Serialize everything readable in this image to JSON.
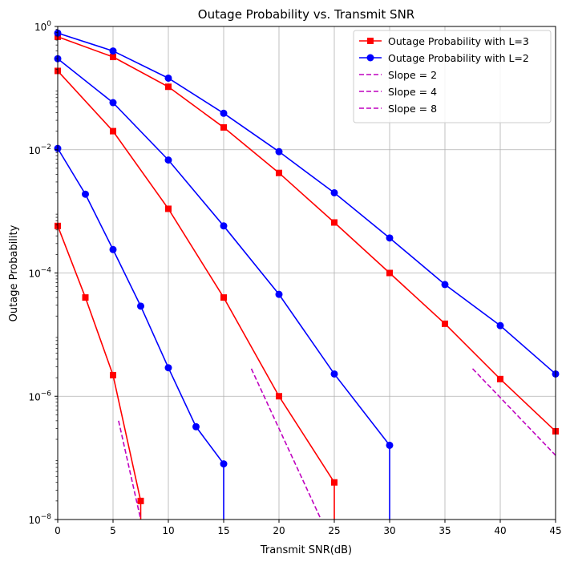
{
  "chart_data": {
    "type": "line",
    "title": "Outage Probability vs. Transmit SNR",
    "xlabel": "Transmit SNR(dB)",
    "ylabel": "Outage Probability",
    "x_scale": "linear",
    "y_scale": "log",
    "xlim": [
      0,
      45
    ],
    "ylim": [
      1e-08,
      1
    ],
    "x_ticks": [
      {
        "value": 0,
        "label": "0"
      },
      {
        "value": 5,
        "label": "5"
      },
      {
        "value": 10,
        "label": "10"
      },
      {
        "value": 15,
        "label": "15"
      },
      {
        "value": 20,
        "label": "20"
      },
      {
        "value": 25,
        "label": "25"
      },
      {
        "value": 30,
        "label": "30"
      },
      {
        "value": 35,
        "label": "35"
      },
      {
        "value": 40,
        "label": "40"
      },
      {
        "value": 45,
        "label": "45"
      }
    ],
    "y_ticks": [
      {
        "value": 1e-08,
        "base": "10",
        "exp": "−8"
      },
      {
        "value": 1e-06,
        "base": "10",
        "exp": "−6"
      },
      {
        "value": 0.0001,
        "base": "10",
        "exp": "−4"
      },
      {
        "value": 0.01,
        "base": "10",
        "exp": "−2"
      },
      {
        "value": 1,
        "base": "10",
        "exp": "0"
      }
    ],
    "grid": true,
    "legend_position": "top-right",
    "legend": [
      {
        "label": "Outage Probability with L=3",
        "color": "#ff0000",
        "marker": "square",
        "dashed": false
      },
      {
        "label": "Outage Probability with L=2",
        "color": "#0000ff",
        "marker": "circle",
        "dashed": false
      },
      {
        "label": "Slope = 2",
        "color": "#bf00bf",
        "marker": "none",
        "dashed": true
      },
      {
        "label": "Slope = 4",
        "color": "#bf00bf",
        "marker": "none",
        "dashed": true
      },
      {
        "label": "Slope = 8",
        "color": "#bf00bf",
        "marker": "none",
        "dashed": true
      }
    ],
    "series": [
      {
        "group": "L3",
        "color": "#ff0000",
        "marker": "square",
        "dashed": false,
        "x": [
          0,
          5,
          10,
          15,
          20,
          25,
          30,
          35,
          40,
          45
        ],
        "y": [
          0.68,
          0.32,
          0.105,
          0.023,
          0.0042,
          0.00066,
          0.0001,
          1.5e-05,
          1.9e-06,
          2.7e-07
        ]
      },
      {
        "group": "L3",
        "color": "#ff0000",
        "marker": "square",
        "dashed": false,
        "x": [
          0,
          5,
          10,
          15,
          20,
          25,
          25
        ],
        "y": [
          0.19,
          0.02,
          0.0011,
          4e-05,
          1e-06,
          4e-08,
          1e-08
        ]
      },
      {
        "group": "L3",
        "color": "#ff0000",
        "marker": "square",
        "dashed": false,
        "x": [
          0,
          2.5,
          5,
          7.5,
          7.5
        ],
        "y": [
          0.00058,
          4e-05,
          2.2e-06,
          2e-08,
          1e-08
        ]
      },
      {
        "group": "L2",
        "color": "#0000ff",
        "marker": "circle",
        "dashed": false,
        "x": [
          0,
          5,
          10,
          15,
          20,
          25,
          30,
          35,
          40,
          45
        ],
        "y": [
          0.78,
          0.4,
          0.145,
          0.039,
          0.0093,
          0.002,
          0.00037,
          6.5e-05,
          1.4e-05,
          2.3e-06
        ]
      },
      {
        "group": "L2",
        "color": "#0000ff",
        "marker": "circle",
        "dashed": false,
        "x": [
          0,
          5,
          10,
          15,
          20,
          25,
          30,
          30
        ],
        "y": [
          0.3,
          0.058,
          0.0068,
          0.00058,
          4.5e-05,
          2.3e-06,
          1.6e-07,
          1e-08
        ]
      },
      {
        "group": "L2",
        "color": "#0000ff",
        "marker": "circle",
        "dashed": false,
        "x": [
          0,
          2.5,
          5,
          7.5,
          10,
          12.5,
          15,
          15
        ],
        "y": [
          0.0105,
          0.0019,
          0.00024,
          2.9e-05,
          2.9e-06,
          3.2e-07,
          8e-08,
          1e-08
        ]
      },
      {
        "group": "slope2",
        "color": "#bf00bf",
        "marker": "none",
        "dashed": true,
        "x": [
          37.5,
          45
        ],
        "y": [
          2.8e-06,
          1.1e-07
        ]
      },
      {
        "group": "slope4",
        "color": "#bf00bf",
        "marker": "none",
        "dashed": true,
        "x": [
          17.5,
          23.8
        ],
        "y": [
          2.8e-06,
          1e-08
        ]
      },
      {
        "group": "slope8",
        "color": "#bf00bf",
        "marker": "none",
        "dashed": true,
        "x": [
          5.5,
          7.5
        ],
        "y": [
          4e-07,
          1e-08
        ]
      }
    ]
  }
}
